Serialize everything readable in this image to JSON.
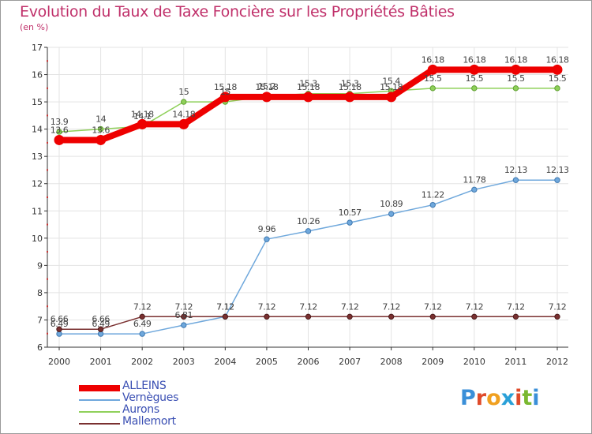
{
  "header": {
    "title": "Evolution du Taux de Taxe Foncière sur les Propriétés Bâties",
    "unit": "(en %)"
  },
  "logo": {
    "letters": [
      "P",
      "r",
      "o",
      "x",
      "i",
      "t",
      "i"
    ],
    "colors": [
      "#3a8fd8",
      "#e04a2a",
      "#f0a020",
      "#2aa0d8",
      "#e04a2a",
      "#7ab830",
      "#3a8fd8"
    ]
  },
  "chart_data": {
    "type": "line",
    "title": "Evolution du Taux de Taxe Foncière sur les Propriétés Bâties",
    "ylabel": "(en %)",
    "xlabel": "",
    "ylim": [
      6,
      17
    ],
    "yticks": [
      "6",
      "7",
      "8",
      "9",
      "10",
      "11",
      "12",
      "13",
      "14",
      "15",
      "16",
      "17"
    ],
    "categories": [
      "2000",
      "2001",
      "2002",
      "2003",
      "2004",
      "2005",
      "2006",
      "2007",
      "2008",
      "2009",
      "2010",
      "2011",
      "2012"
    ],
    "series": [
      {
        "name": "ALLEINS",
        "color": "#ee0000",
        "values": [
          13.6,
          13.6,
          14.18,
          14.18,
          15.18,
          15.18,
          15.18,
          15.18,
          15.18,
          16.18,
          16.18,
          16.18,
          16.18
        ],
        "labels": [
          "13.6",
          "13.6",
          "14.18",
          "14.18",
          "15.18",
          "15.18",
          "15.18",
          "15.18",
          "15.18",
          "16.18",
          "16.18",
          "16.18",
          "16.18"
        ]
      },
      {
        "name": "Vernègues",
        "color": "#6fa8dc",
        "values": [
          6.49,
          6.49,
          6.49,
          6.81,
          7.12,
          9.96,
          10.26,
          10.57,
          10.89,
          11.22,
          11.78,
          12.13,
          12.13
        ],
        "labels": [
          "6.49",
          "6.49",
          "6.49",
          "6.81",
          "7.12",
          "9.96",
          "10.26",
          "10.57",
          "10.89",
          "11.22",
          "11.78",
          "12.13",
          "12.13"
        ]
      },
      {
        "name": "Aurons",
        "color": "#8fd05a",
        "values": [
          13.9,
          14,
          14.1,
          15,
          15,
          15.2,
          15.3,
          15.3,
          15.4,
          15.5,
          15.5,
          15.5,
          15.5
        ],
        "labels": [
          "13.9",
          "14",
          "14.1",
          "15",
          "15",
          "15.2",
          "15.3",
          "15.3",
          "15.4",
          "15.5",
          "15.5",
          "15.5",
          "15.5"
        ]
      },
      {
        "name": "Mallemort",
        "color": "#7a3030",
        "values": [
          6.66,
          6.66,
          7.12,
          7.12,
          7.12,
          7.12,
          7.12,
          7.12,
          7.12,
          7.12,
          7.12,
          7.12,
          7.12
        ],
        "labels": [
          "6.66",
          "6.66",
          "7.12",
          "7.12",
          "7.12",
          "7.12",
          "7.12",
          "7.12",
          "7.12",
          "7.12",
          "7.12",
          "7.12",
          "7.12"
        ]
      }
    ]
  }
}
